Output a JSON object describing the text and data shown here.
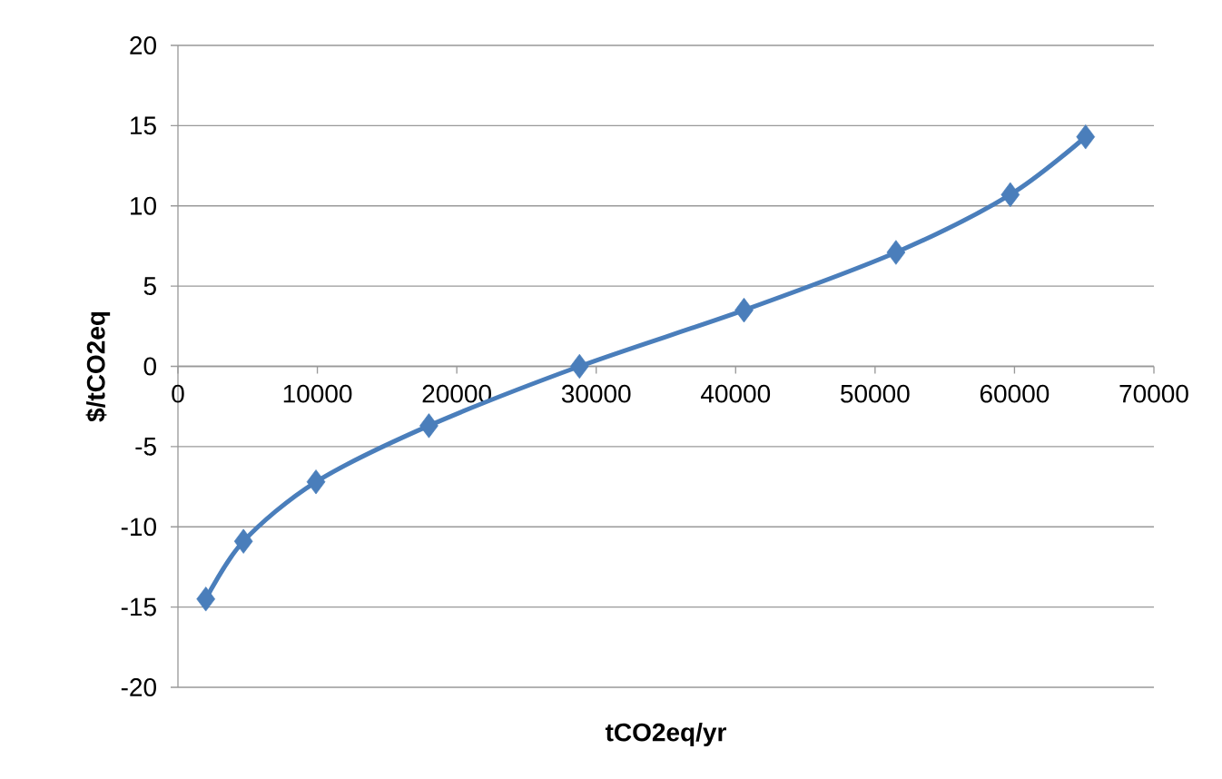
{
  "chart_data": {
    "type": "line",
    "xlabel": "tCO2eq/yr",
    "ylabel": "$/tCO2eq",
    "x": [
      2000,
      4700,
      9900,
      18000,
      28800,
      40600,
      51500,
      59700,
      65100
    ],
    "values": [
      -14.5,
      -10.9,
      -7.2,
      -3.7,
      0,
      3.5,
      7.1,
      10.7,
      14.3
    ],
    "color": "#4a7ebb",
    "marker": "diamond",
    "line_style": "solid",
    "xlim": [
      0,
      70000
    ],
    "ylim": [
      -20,
      20
    ],
    "xticks": [
      0,
      10000,
      20000,
      30000,
      40000,
      50000,
      60000,
      70000
    ],
    "yticks": [
      -20,
      -15,
      -10,
      -5,
      0,
      5,
      10,
      15,
      20
    ],
    "grid": "y"
  }
}
